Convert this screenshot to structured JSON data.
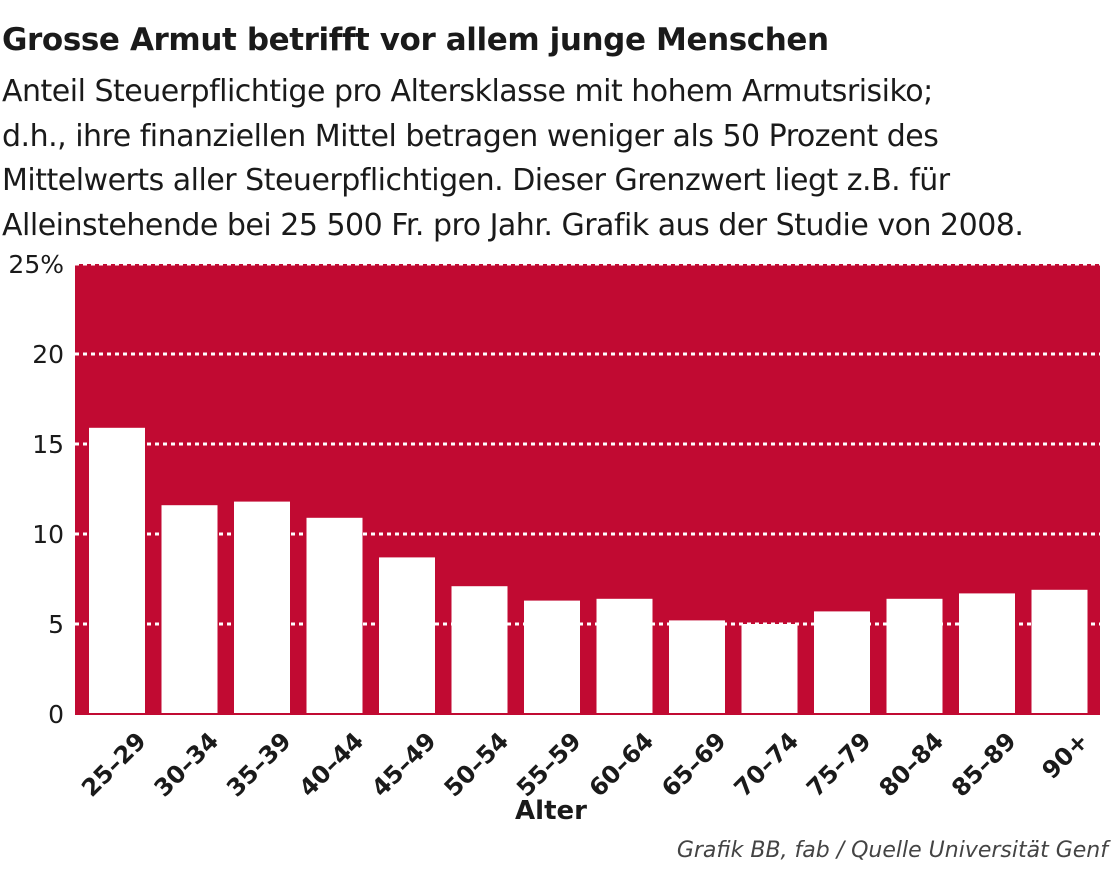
{
  "chart_data": {
    "type": "bar",
    "title": "Grosse Armut betrifft vor allem junge Menschen",
    "subtitle_lines": [
      "Anteil Steuerpflichtige pro Altersklasse mit hohem Armutsrisiko;",
      "d.h., ihre finanziellen Mittel betragen weniger als 50 Prozent des",
      "Mittelwerts aller Steuerpflichtigen. Dieser Grenzwert liegt z.B. für",
      "Alleinstehende bei 25 500 Fr. pro Jahr. Grafik aus der Studie von 2008."
    ],
    "categories": [
      "25–29",
      "30–34",
      "35–39",
      "40–44",
      "45–49",
      "50–54",
      "55–59",
      "60–64",
      "65–69",
      "70–74",
      "75–79",
      "80–84",
      "85–89",
      "90+"
    ],
    "values": [
      15.9,
      11.6,
      11.8,
      10.9,
      8.7,
      7.1,
      6.3,
      6.4,
      5.2,
      5.0,
      5.7,
      6.4,
      6.7,
      6.9
    ],
    "xlabel": "Alter",
    "ylabel": "",
    "ylim": [
      0,
      25
    ],
    "yticks": [
      0,
      5,
      10,
      15,
      20,
      25
    ],
    "ytick_labels": [
      "0",
      "5",
      "10",
      "15",
      "20",
      "25%"
    ],
    "grid": true,
    "source": "Grafik BB, fab / Quelle Universität Genf",
    "colors": {
      "background": "#c10a32",
      "bars": "#ffffff",
      "grid": "#ffffff",
      "text": "#1a1a1a"
    }
  }
}
